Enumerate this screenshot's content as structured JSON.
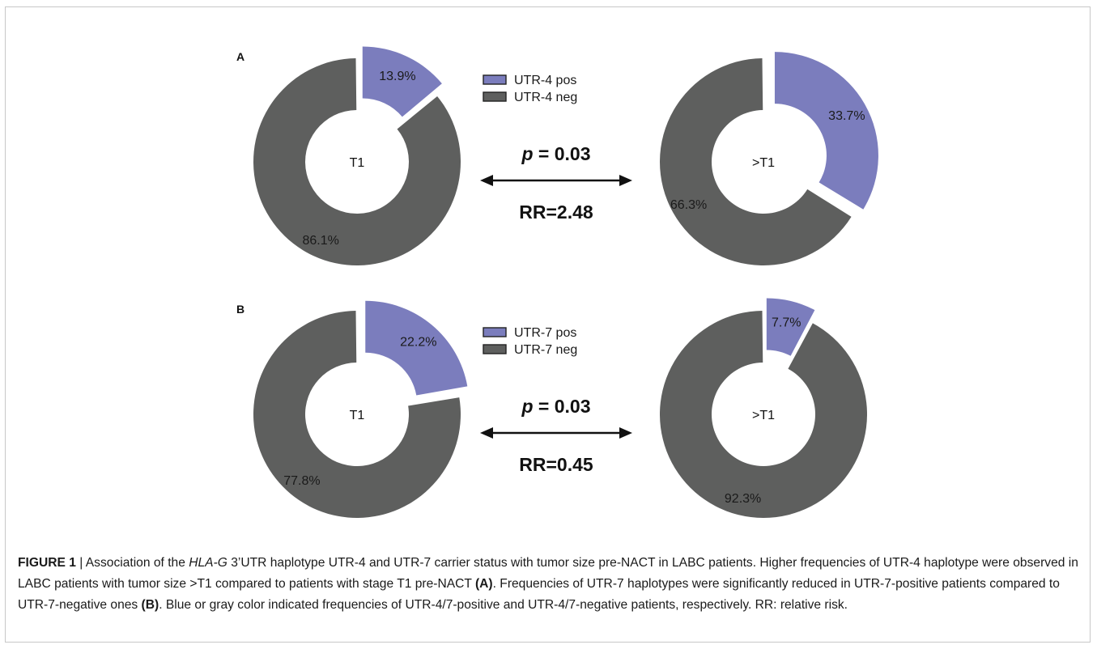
{
  "colors": {
    "pos": "#7b7dbd",
    "neg": "#5e5f5e",
    "border": "#c8c8c8"
  },
  "chart_data": [
    {
      "type": "pie",
      "panel": "A",
      "legend": [
        "UTR-4 pos",
        "UTR-4 neg"
      ],
      "p_value_label": "p",
      "p_value_text": " = 0.03",
      "rr_text": "RR=2.48",
      "charts": [
        {
          "center_label": "T1",
          "slices": [
            {
              "name": "UTR-4 pos",
              "value": 13.9,
              "label": "13.9%"
            },
            {
              "name": "UTR-4 neg",
              "value": 86.1,
              "label": "86.1%"
            }
          ]
        },
        {
          "center_label": ">T1",
          "slices": [
            {
              "name": "UTR-4 pos",
              "value": 33.7,
              "label": "33.7%"
            },
            {
              "name": "UTR-4 neg",
              "value": 66.3,
              "label": "66.3%"
            }
          ]
        }
      ]
    },
    {
      "type": "pie",
      "panel": "B",
      "legend": [
        "UTR-7 pos",
        "UTR-7 neg"
      ],
      "p_value_label": "p",
      "p_value_text": " = 0.03",
      "rr_text": "RR=0.45",
      "charts": [
        {
          "center_label": "T1",
          "slices": [
            {
              "name": "UTR-7 pos",
              "value": 22.2,
              "label": "22.2%"
            },
            {
              "name": "UTR-7 neg",
              "value": 77.8,
              "label": "77.8%"
            }
          ]
        },
        {
          "center_label": ">T1",
          "slices": [
            {
              "name": "UTR-7 pos",
              "value": 7.7,
              "label": "7.7%"
            },
            {
              "name": "UTR-7 neg",
              "value": 92.3,
              "label": "92.3%"
            }
          ]
        }
      ]
    }
  ],
  "caption": {
    "figure_label": "FIGURE 1",
    "separator": " | ",
    "part1": "Association of the ",
    "gene": "HLA-G",
    "part2": " 3’UTR haplotype UTR-4 and UTR-7 carrier status with tumor size pre-NACT in LABC patients. Higher frequencies of UTR-4 haplotype were observed in LABC patients with tumor size >T1 compared to patients with stage T1 pre-NACT ",
    "ref_a": "(A)",
    "part3": ". Frequencies of UTR-7 haplotypes were significantly reduced in UTR-7-positive patients compared to UTR-7-negative ones ",
    "ref_b": "(B)",
    "part4": ". Blue or gray color indicated frequencies of UTR-4/7-positive and UTR-4/7-negative patients, respectively. RR: relative risk."
  }
}
